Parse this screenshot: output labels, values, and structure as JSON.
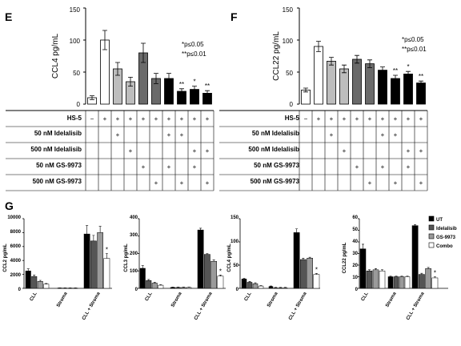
{
  "colors": {
    "white": "#ffffff",
    "light_gray": "#bdbdbd",
    "mid_gray": "#9a9a9a",
    "dark_gray": "#6a6a6a",
    "darker_gray": "#555555",
    "black": "#000000"
  },
  "panel_E": {
    "letter": "E",
    "ylabel": "CCL4 pg/mL",
    "yticks": [
      "0",
      "50",
      "100",
      "150"
    ],
    "sig_note_1": "*p≤0.05",
    "sig_note_2": "**p≤0.01",
    "table_rows": [
      "HS-5",
      "50 nM Idelalisib",
      "500 nM Idelalisib",
      "50 nM GS-9973",
      "500 nM GS-9973"
    ]
  },
  "panel_F": {
    "letter": "F",
    "ylabel": "CCL22 pg/mL",
    "yticks": [
      "0",
      "50",
      "100",
      "150"
    ],
    "sig_note_1": "*p≤0.05",
    "sig_note_2": "**p≤0.01",
    "table_rows": [
      "HS-5",
      "50 nM Idelalisib",
      "500 nM Idelalisib",
      "50 nM GS-9973",
      "500 nM GS-9973"
    ]
  },
  "panel_G": {
    "letter": "G"
  },
  "chart_data": [
    {
      "type": "bar",
      "id": "E",
      "ylabel": "CCL4 pg/mL",
      "ylim": [
        0,
        150
      ],
      "values": [
        10,
        100,
        55,
        35,
        80,
        40,
        40,
        20,
        23,
        17
      ],
      "errors": [
        3,
        15,
        10,
        7,
        15,
        8,
        8,
        4,
        5,
        4
      ],
      "fills": [
        "white",
        "white",
        "light_gray",
        "light_gray",
        "dark_gray",
        "dark_gray",
        "black",
        "black",
        "black",
        "black"
      ],
      "significance": [
        "",
        "",
        "",
        "",
        "",
        "",
        "",
        "**",
        "*",
        "**"
      ],
      "rows": [
        [
          "−",
          "+",
          "+",
          "+",
          "+",
          "+",
          "+",
          "+",
          "+",
          "+"
        ],
        [
          "",
          "",
          "+",
          "",
          "",
          "",
          "+",
          "+",
          "",
          ""
        ],
        [
          "",
          "",
          "",
          "+",
          "",
          "",
          "",
          "",
          "+",
          "+"
        ],
        [
          "",
          "",
          "",
          "",
          "+",
          "",
          "+",
          "",
          "+",
          ""
        ],
        [
          "",
          "",
          "",
          "",
          "",
          "+",
          "",
          "+",
          "",
          "+"
        ]
      ]
    },
    {
      "type": "bar",
      "id": "F",
      "ylabel": "CCL22 pg/mL",
      "ylim": [
        0,
        150
      ],
      "values": [
        22,
        90,
        67,
        55,
        70,
        63,
        53,
        40,
        47,
        33
      ],
      "errors": [
        3,
        8,
        6,
        6,
        6,
        6,
        5,
        5,
        4,
        3
      ],
      "fills": [
        "white",
        "white",
        "light_gray",
        "light_gray",
        "dark_gray",
        "dark_gray",
        "black",
        "black",
        "black",
        "black"
      ],
      "significance": [
        "",
        "",
        "",
        "",
        "",
        "",
        "",
        "**",
        "*",
        "**"
      ],
      "rows": [
        [
          "−",
          "+",
          "+",
          "+",
          "+",
          "+",
          "+",
          "+",
          "+",
          "+"
        ],
        [
          "",
          "",
          "+",
          "",
          "",
          "",
          "+",
          "+",
          "",
          ""
        ],
        [
          "",
          "",
          "",
          "+",
          "",
          "",
          "",
          "",
          "+",
          "+"
        ],
        [
          "",
          "",
          "",
          "",
          "+",
          "",
          "+",
          "",
          "+",
          ""
        ],
        [
          "",
          "",
          "",
          "",
          "",
          "+",
          "",
          "+",
          "",
          "+"
        ]
      ]
    },
    {
      "type": "bar",
      "id": "G1",
      "ylabel": "CCL2 pg/mL",
      "ylim": [
        0,
        10000
      ],
      "yticks": [
        "0",
        "2000",
        "4000",
        "6000",
        "8000",
        "10000"
      ],
      "categories": [
        "CLL",
        "Stroma",
        "CLL + Stroma"
      ],
      "series": [
        {
          "name": "UT",
          "values": [
            2500,
            50,
            7800
          ],
          "errors": [
            300,
            20,
            1200
          ]
        },
        {
          "name": "Idelalisib",
          "values": [
            1700,
            40,
            6800
          ],
          "errors": [
            200,
            20,
            800
          ]
        },
        {
          "name": "GS-9973",
          "values": [
            1000,
            40,
            8000
          ],
          "errors": [
            150,
            20,
            900
          ]
        },
        {
          "name": "Combo",
          "values": [
            600,
            40,
            4300
          ],
          "errors": [
            100,
            20,
            700
          ]
        }
      ],
      "significance": [
        "",
        "",
        "*"
      ]
    },
    {
      "type": "bar",
      "id": "G2",
      "ylabel": "CCL3 pg/mL",
      "ylim": [
        0,
        400
      ],
      "yticks": [
        "0",
        "100",
        "200",
        "300",
        "400"
      ],
      "categories": [
        "CLL",
        "Stroma",
        "CLL + Stroma"
      ],
      "series": [
        {
          "name": "UT",
          "values": [
            115,
            5,
            335
          ],
          "errors": [
            15,
            2,
            10
          ]
        },
        {
          "name": "Idelalisib",
          "values": [
            45,
            5,
            195
          ],
          "errors": [
            6,
            2,
            5
          ]
        },
        {
          "name": "GS-9973",
          "values": [
            30,
            5,
            155
          ],
          "errors": [
            5,
            2,
            8
          ]
        },
        {
          "name": "Combo",
          "values": [
            18,
            5,
            70
          ],
          "errors": [
            3,
            2,
            6
          ]
        }
      ],
      "significance": [
        "",
        "",
        "*"
      ]
    },
    {
      "type": "bar",
      "id": "G3",
      "ylabel": "CCL4 pg/mL",
      "ylim": [
        0,
        150
      ],
      "yticks": [
        "0",
        "50",
        "100",
        "150"
      ],
      "categories": [
        "CLL",
        "Stroma",
        "CLL + Stroma"
      ],
      "series": [
        {
          "name": "UT",
          "values": [
            20,
            4,
            120
          ],
          "errors": [
            2,
            1,
            8
          ]
        },
        {
          "name": "Idelalisib",
          "values": [
            13,
            1,
            62
          ],
          "errors": [
            2,
            1,
            3
          ]
        },
        {
          "name": "GS-9973",
          "values": [
            10,
            1,
            65
          ],
          "errors": [
            2,
            1,
            2
          ]
        },
        {
          "name": "Combo",
          "values": [
            5,
            1,
            30
          ],
          "errors": [
            1,
            1,
            2
          ]
        }
      ],
      "significance": [
        "",
        "",
        "*"
      ]
    },
    {
      "type": "bar",
      "id": "G4",
      "ylabel": "CCL22 pg/mL",
      "ylim": [
        0,
        60
      ],
      "yticks": [
        "0",
        "10",
        "20",
        "30",
        "40",
        "50",
        "60"
      ],
      "categories": [
        "CLL",
        "Stroma",
        "CLL + Stroma"
      ],
      "series": [
        {
          "name": "UT",
          "values": [
            34,
            10,
            54
          ],
          "errors": [
            4,
            0.5,
            1
          ]
        },
        {
          "name": "Idelalisib",
          "values": [
            15,
            10,
            12
          ],
          "errors": [
            1,
            0.5,
            1
          ]
        },
        {
          "name": "GS-9973",
          "values": [
            16,
            10,
            17
          ],
          "errors": [
            1,
            0.5,
            1
          ]
        },
        {
          "name": "Combo",
          "values": [
            15,
            10,
            9
          ],
          "errors": [
            1,
            0.5,
            1
          ]
        }
      ],
      "significance": [
        "",
        "",
        "*"
      ],
      "legend": "top-right"
    }
  ]
}
